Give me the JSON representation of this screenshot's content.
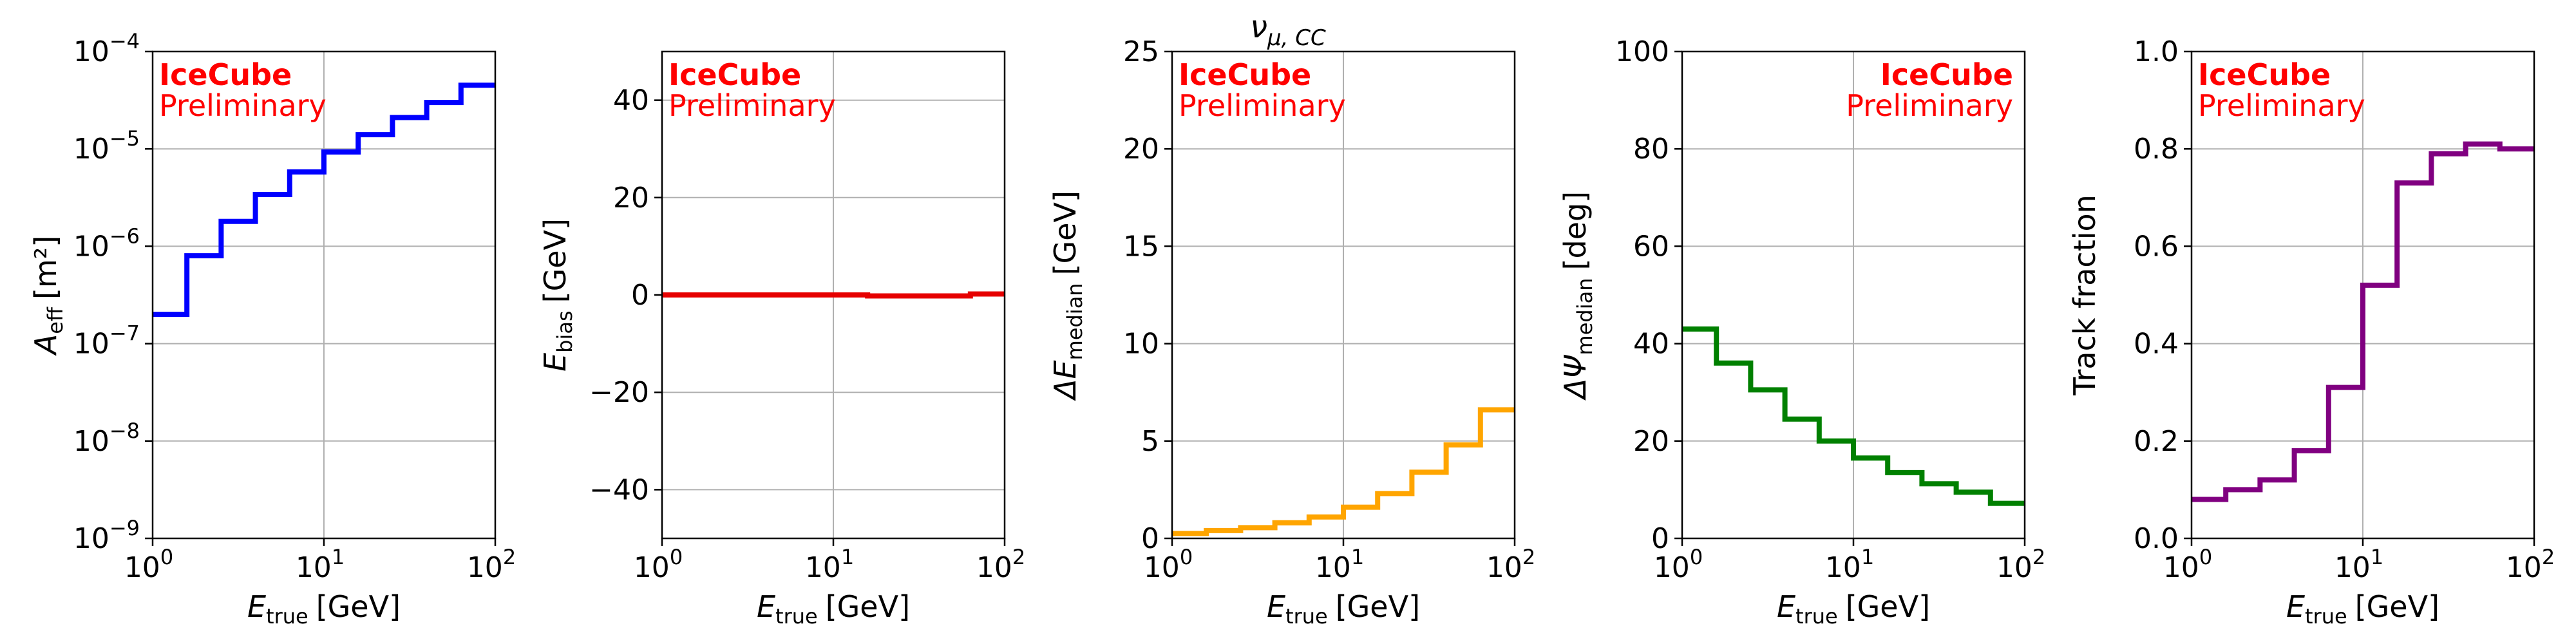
{
  "figure": {
    "suptitle_base": "ν",
    "suptitle_sub": "μ, CC",
    "watermark_title": "IceCube",
    "watermark_sub": "Preliminary",
    "watermark_color": "#ff0000"
  },
  "chart_data": [
    {
      "type": "line",
      "step": true,
      "xscale": "log",
      "yscale": "log",
      "xlim": [
        1,
        100
      ],
      "ylim": [
        1e-09,
        0.0001
      ],
      "xlabel_main": "E",
      "xlabel_sub": "true",
      "xlabel_unit": "[GeV]",
      "ylabel_main": "A",
      "ylabel_sub": "eff",
      "ylabel_unit": "[m²]",
      "xticks": [
        {
          "value": 1,
          "base": "10",
          "exp": "0"
        },
        {
          "value": 10,
          "base": "10",
          "exp": "1"
        },
        {
          "value": 100,
          "base": "10",
          "exp": "2"
        }
      ],
      "yticks": [
        {
          "value": 1e-09,
          "base": "10",
          "exp": "−9"
        },
        {
          "value": 1e-08,
          "base": "10",
          "exp": "−8"
        },
        {
          "value": 1e-07,
          "base": "10",
          "exp": "−7"
        },
        {
          "value": 1e-06,
          "base": "10",
          "exp": "−6"
        },
        {
          "value": 1e-05,
          "base": "10",
          "exp": "−5"
        },
        {
          "value": 0.0001,
          "base": "10",
          "exp": "−4"
        }
      ],
      "grid": true,
      "color": "#0000ff",
      "watermark_position": "top-left",
      "bin_edges": [
        1,
        1.585,
        2.512,
        3.981,
        6.31,
        10,
        15.85,
        25.12,
        39.81,
        63.1,
        100
      ],
      "values": [
        2e-07,
        8e-07,
        1.8e-06,
        3.4e-06,
        5.8e-06,
        9.3e-06,
        1.4e-05,
        2.1e-05,
        3e-05,
        4.5e-05
      ]
    },
    {
      "type": "line",
      "step": true,
      "xscale": "log",
      "yscale": "linear",
      "xlim": [
        1,
        100
      ],
      "ylim": [
        -50,
        50
      ],
      "xlabel_main": "E",
      "xlabel_sub": "true",
      "xlabel_unit": "[GeV]",
      "ylabel_main": "E",
      "ylabel_sub": "bias",
      "ylabel_unit": "[GeV]",
      "xticks": [
        {
          "value": 1,
          "base": "10",
          "exp": "0"
        },
        {
          "value": 10,
          "base": "10",
          "exp": "1"
        },
        {
          "value": 100,
          "base": "10",
          "exp": "2"
        }
      ],
      "yticks": [
        {
          "value": -40,
          "label": "−40"
        },
        {
          "value": -20,
          "label": "−20"
        },
        {
          "value": 0,
          "label": "0"
        },
        {
          "value": 20,
          "label": "20"
        },
        {
          "value": 40,
          "label": "40"
        }
      ],
      "grid": true,
      "color": "#e60000",
      "watermark_position": "top-left",
      "bin_edges": [
        1,
        1.585,
        2.512,
        3.981,
        6.31,
        10,
        15.85,
        25.12,
        39.81,
        63.1,
        100
      ],
      "values": [
        0,
        0,
        0,
        0,
        0,
        0,
        -0.2,
        -0.2,
        -0.2,
        0.2
      ]
    },
    {
      "type": "line",
      "step": true,
      "xscale": "log",
      "yscale": "linear",
      "xlim": [
        1,
        100
      ],
      "ylim": [
        0,
        25
      ],
      "xlabel_main": "E",
      "xlabel_sub": "true",
      "xlabel_unit": "[GeV]",
      "ylabel_main": "ΔE",
      "ylabel_sub": "median",
      "ylabel_unit": "[GeV]",
      "xticks": [
        {
          "value": 1,
          "base": "10",
          "exp": "0"
        },
        {
          "value": 10,
          "base": "10",
          "exp": "1"
        },
        {
          "value": 100,
          "base": "10",
          "exp": "2"
        }
      ],
      "yticks": [
        {
          "value": 0,
          "label": "0"
        },
        {
          "value": 5,
          "label": "5"
        },
        {
          "value": 10,
          "label": "10"
        },
        {
          "value": 15,
          "label": "15"
        },
        {
          "value": 20,
          "label": "20"
        },
        {
          "value": 25,
          "label": "25"
        }
      ],
      "grid": true,
      "color": "#ffa500",
      "watermark_position": "top-left",
      "bin_edges": [
        1,
        1.585,
        2.512,
        3.981,
        6.31,
        10,
        15.85,
        25.12,
        39.81,
        63.1,
        100
      ],
      "values": [
        0.25,
        0.4,
        0.55,
        0.8,
        1.1,
        1.6,
        2.3,
        3.4,
        4.8,
        6.6
      ]
    },
    {
      "type": "line",
      "step": true,
      "xscale": "log",
      "yscale": "linear",
      "xlim": [
        1,
        100
      ],
      "ylim": [
        0,
        100
      ],
      "xlabel_main": "E",
      "xlabel_sub": "true",
      "xlabel_unit": "[GeV]",
      "ylabel_main": "ΔΨ",
      "ylabel_sub": "median",
      "ylabel_unit": "[deg]",
      "xticks": [
        {
          "value": 1,
          "base": "10",
          "exp": "0"
        },
        {
          "value": 10,
          "base": "10",
          "exp": "1"
        },
        {
          "value": 100,
          "base": "10",
          "exp": "2"
        }
      ],
      "yticks": [
        {
          "value": 0,
          "label": "0"
        },
        {
          "value": 20,
          "label": "20"
        },
        {
          "value": 40,
          "label": "40"
        },
        {
          "value": 60,
          "label": "60"
        },
        {
          "value": 80,
          "label": "80"
        },
        {
          "value": 100,
          "label": "100"
        }
      ],
      "grid": true,
      "color": "#008000",
      "watermark_position": "top-right",
      "bin_edges": [
        1,
        1.585,
        2.512,
        3.981,
        6.31,
        10,
        15.85,
        25.12,
        39.81,
        63.1,
        100
      ],
      "values": [
        43,
        36,
        30.5,
        24.5,
        20,
        16.5,
        13.5,
        11.2,
        9.5,
        7.2
      ]
    },
    {
      "type": "line",
      "step": true,
      "xscale": "log",
      "yscale": "linear",
      "xlim": [
        1,
        100
      ],
      "ylim": [
        0,
        1
      ],
      "xlabel_main": "E",
      "xlabel_sub": "true",
      "xlabel_unit": "[GeV]",
      "ylabel_main": "Track fraction",
      "ylabel_sub": "",
      "ylabel_unit": "",
      "xticks": [
        {
          "value": 1,
          "base": "10",
          "exp": "0"
        },
        {
          "value": 10,
          "base": "10",
          "exp": "1"
        },
        {
          "value": 100,
          "base": "10",
          "exp": "2"
        }
      ],
      "yticks": [
        {
          "value": 0,
          "label": "0.0"
        },
        {
          "value": 0.2,
          "label": "0.2"
        },
        {
          "value": 0.4,
          "label": "0.4"
        },
        {
          "value": 0.6,
          "label": "0.6"
        },
        {
          "value": 0.8,
          "label": "0.8"
        },
        {
          "value": 1,
          "label": "1.0"
        }
      ],
      "grid": true,
      "color": "#800080",
      "watermark_position": "top-left",
      "bin_edges": [
        1,
        1.585,
        2.512,
        3.981,
        6.31,
        10,
        15.85,
        25.12,
        39.81,
        63.1,
        100
      ],
      "values": [
        0.08,
        0.1,
        0.12,
        0.18,
        0.31,
        0.52,
        0.73,
        0.79,
        0.81,
        0.8
      ]
    }
  ]
}
